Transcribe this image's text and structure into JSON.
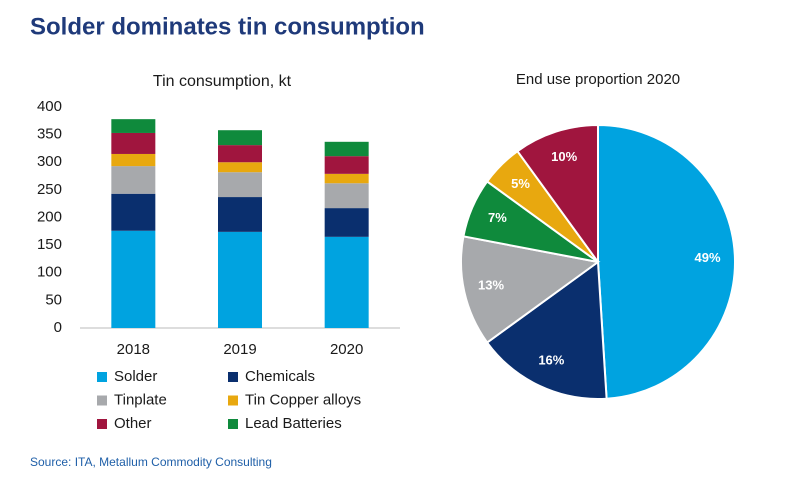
{
  "title": "Solder dominates tin consumption",
  "source": "Source: ITA, Metallum Commodity Consulting",
  "chart_data": [
    {
      "type": "bar",
      "stacked": true,
      "title": "Tin consumption, kt",
      "categories": [
        "2018",
        "2019",
        "2020"
      ],
      "series": [
        {
          "name": "Solder",
          "color": "#00a3e0",
          "values": [
            176,
            174,
            165
          ]
        },
        {
          "name": "Chemicals",
          "color": "#0a2f6e",
          "values": [
            67,
            63,
            52
          ]
        },
        {
          "name": "Tinplate",
          "color": "#a7a9ac",
          "values": [
            50,
            45,
            45
          ]
        },
        {
          "name": "Tin Copper alloys",
          "color": "#e8a80f",
          "values": [
            22,
            18,
            17
          ]
        },
        {
          "name": "Other",
          "color": "#a0153e",
          "values": [
            38,
            31,
            32
          ]
        },
        {
          "name": "Lead Batteries",
          "color": "#0f8a3c",
          "values": [
            25,
            27,
            26
          ]
        }
      ],
      "ylim": [
        0,
        400
      ],
      "yticks": [
        0,
        50,
        100,
        150,
        200,
        250,
        300,
        350,
        400
      ],
      "grid": false,
      "legend": "bottom"
    },
    {
      "type": "pie",
      "title": "End use proportion 2020",
      "values": [
        49,
        16,
        13,
        7,
        5,
        10
      ],
      "value_labels": [
        "49%",
        "16%",
        "13%",
        "7%",
        "5%",
        "10%"
      ],
      "colors": [
        "#00a3e0",
        "#0a2f6e",
        "#a7a9ac",
        "#0f8a3c",
        "#e8a80f",
        "#a0153e"
      ]
    }
  ]
}
